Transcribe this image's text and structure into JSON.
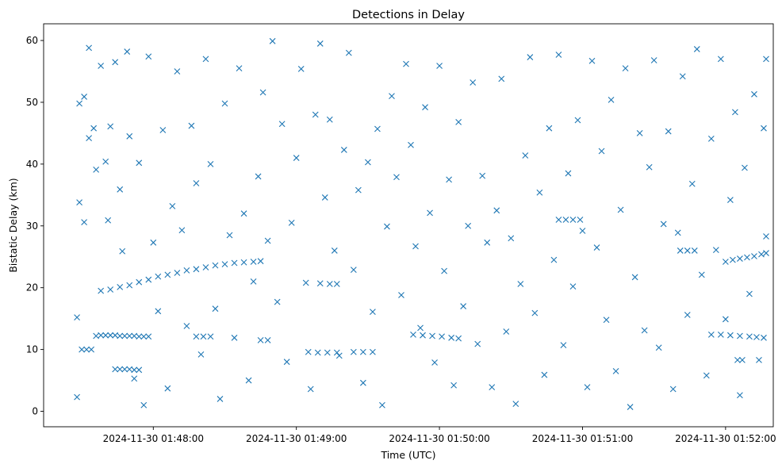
{
  "chart_data": {
    "type": "scatter",
    "title": "Detections in Delay",
    "xlabel": "Time (UTC)",
    "ylabel": "Bistatic Delay (km)",
    "x_ticks": [
      "2024-11-30 01:48:00",
      "2024-11-30 01:49:00",
      "2024-11-30 01:50:00",
      "2024-11-30 01:51:00",
      "2024-11-30 01:52:00"
    ],
    "y_ticks": [
      0,
      10,
      20,
      30,
      40,
      50,
      60
    ],
    "xlim": [
      "2024-11-30 01:47:14",
      "2024-11-30 01:52:20"
    ],
    "ylim": [
      -2.5,
      62.7
    ],
    "marker": "x",
    "grid": false,
    "color": "#1f77b4",
    "series": [
      {
        "points": [
          [
            "2024-11-30 01:47:28",
            15.2
          ],
          [
            "2024-11-30 01:47:28",
            2.3
          ],
          [
            "2024-11-30 01:47:29",
            49.8
          ],
          [
            "2024-11-30 01:47:29",
            33.8
          ],
          [
            "2024-11-30 01:47:31",
            50.9
          ],
          [
            "2024-11-30 01:47:31",
            30.6
          ],
          [
            "2024-11-30 01:47:33",
            58.8
          ],
          [
            "2024-11-30 01:47:33",
            44.2
          ],
          [
            "2024-11-30 01:47:35",
            45.8
          ],
          [
            "2024-11-30 01:47:36",
            39.1
          ],
          [
            "2024-11-30 01:47:38",
            55.9
          ],
          [
            "2024-11-30 01:47:40",
            40.4
          ],
          [
            "2024-11-30 01:47:41",
            30.9
          ],
          [
            "2024-11-30 01:47:42",
            46.1
          ],
          [
            "2024-11-30 01:47:44",
            56.5
          ],
          [
            "2024-11-30 01:47:46",
            35.9
          ],
          [
            "2024-11-30 01:47:47",
            25.9
          ],
          [
            "2024-11-30 01:47:49",
            58.2
          ],
          [
            "2024-11-30 01:47:50",
            44.5
          ],
          [
            "2024-11-30 01:47:52",
            5.3
          ],
          [
            "2024-11-30 01:47:54",
            40.2
          ],
          [
            "2024-11-30 01:47:56",
            1.0
          ],
          [
            "2024-11-30 01:47:58",
            57.4
          ],
          [
            "2024-11-30 01:48:00",
            27.3
          ],
          [
            "2024-11-30 01:48:02",
            16.2
          ],
          [
            "2024-11-30 01:48:04",
            45.5
          ],
          [
            "2024-11-30 01:48:06",
            3.7
          ],
          [
            "2024-11-30 01:48:08",
            33.2
          ],
          [
            "2024-11-30 01:48:10",
            55.0
          ],
          [
            "2024-11-30 01:48:12",
            29.3
          ],
          [
            "2024-11-30 01:48:14",
            13.8
          ],
          [
            "2024-11-30 01:48:16",
            46.2
          ],
          [
            "2024-11-30 01:48:18",
            36.9
          ],
          [
            "2024-11-30 01:48:20",
            9.2
          ],
          [
            "2024-11-30 01:48:22",
            57.0
          ],
          [
            "2024-11-30 01:48:24",
            40.0
          ],
          [
            "2024-11-30 01:48:26",
            16.6
          ],
          [
            "2024-11-30 01:48:28",
            2.0
          ],
          [
            "2024-11-30 01:48:30",
            49.8
          ],
          [
            "2024-11-30 01:48:32",
            28.5
          ],
          [
            "2024-11-30 01:48:34",
            11.9
          ],
          [
            "2024-11-30 01:48:36",
            55.5
          ],
          [
            "2024-11-30 01:48:38",
            32.0
          ],
          [
            "2024-11-30 01:48:40",
            5.0
          ],
          [
            "2024-11-30 01:48:42",
            21.0
          ],
          [
            "2024-11-30 01:48:44",
            38.0
          ],
          [
            "2024-11-30 01:48:46",
            51.6
          ],
          [
            "2024-11-30 01:48:48",
            27.6
          ],
          [
            "2024-11-30 01:48:50",
            59.9
          ],
          [
            "2024-11-30 01:48:52",
            17.7
          ],
          [
            "2024-11-30 01:48:54",
            46.5
          ],
          [
            "2024-11-30 01:48:56",
            8.0
          ],
          [
            "2024-11-30 01:48:58",
            30.5
          ],
          [
            "2024-11-30 01:49:00",
            41.0
          ],
          [
            "2024-11-30 01:49:02",
            55.4
          ],
          [
            "2024-11-30 01:49:04",
            20.8
          ],
          [
            "2024-11-30 01:49:06",
            3.6
          ],
          [
            "2024-11-30 01:49:08",
            48.0
          ],
          [
            "2024-11-30 01:49:10",
            59.5
          ],
          [
            "2024-11-30 01:49:12",
            34.6
          ],
          [
            "2024-11-30 01:49:14",
            47.2
          ],
          [
            "2024-11-30 01:49:16",
            26.0
          ],
          [
            "2024-11-30 01:49:18",
            9.0
          ],
          [
            "2024-11-30 01:49:20",
            42.3
          ],
          [
            "2024-11-30 01:49:22",
            58.0
          ],
          [
            "2024-11-30 01:49:24",
            22.9
          ],
          [
            "2024-11-30 01:49:26",
            35.8
          ],
          [
            "2024-11-30 01:49:28",
            4.6
          ],
          [
            "2024-11-30 01:49:30",
            40.3
          ],
          [
            "2024-11-30 01:49:32",
            16.1
          ],
          [
            "2024-11-30 01:49:34",
            45.7
          ],
          [
            "2024-11-30 01:49:36",
            1.0
          ],
          [
            "2024-11-30 01:49:38",
            29.9
          ],
          [
            "2024-11-30 01:49:40",
            51.0
          ],
          [
            "2024-11-30 01:49:42",
            37.9
          ],
          [
            "2024-11-30 01:49:44",
            18.8
          ],
          [
            "2024-11-30 01:49:46",
            56.2
          ],
          [
            "2024-11-30 01:49:48",
            43.1
          ],
          [
            "2024-11-30 01:49:50",
            26.7
          ],
          [
            "2024-11-30 01:49:52",
            13.5
          ],
          [
            "2024-11-30 01:49:54",
            49.2
          ],
          [
            "2024-11-30 01:49:56",
            32.1
          ],
          [
            "2024-11-30 01:49:58",
            7.9
          ],
          [
            "2024-11-30 01:50:00",
            55.9
          ],
          [
            "2024-11-30 01:50:02",
            22.7
          ],
          [
            "2024-11-30 01:50:04",
            37.5
          ],
          [
            "2024-11-30 01:50:06",
            4.2
          ],
          [
            "2024-11-30 01:50:08",
            46.8
          ],
          [
            "2024-11-30 01:50:10",
            17.0
          ],
          [
            "2024-11-30 01:50:12",
            30.0
          ],
          [
            "2024-11-30 01:50:14",
            53.2
          ],
          [
            "2024-11-30 01:50:16",
            10.9
          ],
          [
            "2024-11-30 01:50:18",
            38.1
          ],
          [
            "2024-11-30 01:50:20",
            27.3
          ],
          [
            "2024-11-30 01:50:22",
            3.9
          ],
          [
            "2024-11-30 01:50:24",
            32.5
          ],
          [
            "2024-11-30 01:50:26",
            53.8
          ],
          [
            "2024-11-30 01:50:28",
            12.9
          ],
          [
            "2024-11-30 01:50:30",
            28.0
          ],
          [
            "2024-11-30 01:50:32",
            1.2
          ],
          [
            "2024-11-30 01:50:34",
            20.6
          ],
          [
            "2024-11-30 01:50:36",
            41.4
          ],
          [
            "2024-11-30 01:50:38",
            57.3
          ],
          [
            "2024-11-30 01:50:40",
            15.9
          ],
          [
            "2024-11-30 01:50:42",
            35.4
          ],
          [
            "2024-11-30 01:50:44",
            5.9
          ],
          [
            "2024-11-30 01:50:46",
            45.8
          ],
          [
            "2024-11-30 01:50:48",
            24.5
          ],
          [
            "2024-11-30 01:50:50",
            57.7
          ],
          [
            "2024-11-30 01:50:52",
            10.7
          ],
          [
            "2024-11-30 01:50:54",
            38.5
          ],
          [
            "2024-11-30 01:50:56",
            20.2
          ],
          [
            "2024-11-30 01:50:58",
            47.1
          ],
          [
            "2024-11-30 01:51:00",
            29.2
          ],
          [
            "2024-11-30 01:51:02",
            3.9
          ],
          [
            "2024-11-30 01:51:04",
            56.7
          ],
          [
            "2024-11-30 01:51:06",
            26.5
          ],
          [
            "2024-11-30 01:51:08",
            42.1
          ],
          [
            "2024-11-30 01:51:10",
            14.8
          ],
          [
            "2024-11-30 01:51:12",
            50.4
          ],
          [
            "2024-11-30 01:51:14",
            6.5
          ],
          [
            "2024-11-30 01:51:16",
            32.6
          ],
          [
            "2024-11-30 01:51:18",
            55.5
          ],
          [
            "2024-11-30 01:51:20",
            0.7
          ],
          [
            "2024-11-30 01:51:22",
            21.7
          ],
          [
            "2024-11-30 01:51:24",
            45.0
          ],
          [
            "2024-11-30 01:51:26",
            13.1
          ],
          [
            "2024-11-30 01:51:28",
            39.5
          ],
          [
            "2024-11-30 01:51:30",
            56.8
          ],
          [
            "2024-11-30 01:51:32",
            10.3
          ],
          [
            "2024-11-30 01:51:34",
            30.3
          ],
          [
            "2024-11-30 01:51:36",
            45.3
          ],
          [
            "2024-11-30 01:51:38",
            3.6
          ],
          [
            "2024-11-30 01:51:40",
            28.9
          ],
          [
            "2024-11-30 01:51:42",
            54.2
          ],
          [
            "2024-11-30 01:51:44",
            15.6
          ],
          [
            "2024-11-30 01:51:46",
            36.8
          ],
          [
            "2024-11-30 01:51:48",
            58.6
          ],
          [
            "2024-11-30 01:51:50",
            22.1
          ],
          [
            "2024-11-30 01:51:52",
            5.8
          ],
          [
            "2024-11-30 01:51:54",
            44.1
          ],
          [
            "2024-11-30 01:51:56",
            26.1
          ],
          [
            "2024-11-30 01:51:58",
            57.0
          ],
          [
            "2024-11-30 01:52:00",
            14.9
          ],
          [
            "2024-11-30 01:52:02",
            34.2
          ],
          [
            "2024-11-30 01:52:04",
            48.4
          ],
          [
            "2024-11-30 01:52:06",
            2.6
          ],
          [
            "2024-11-30 01:52:08",
            39.4
          ],
          [
            "2024-11-30 01:52:10",
            19.0
          ],
          [
            "2024-11-30 01:52:12",
            51.3
          ],
          [
            "2024-11-30 01:52:14",
            8.3
          ],
          [
            "2024-11-30 01:52:16",
            45.8
          ],
          [
            "2024-11-30 01:52:17",
            28.3
          ],
          [
            "2024-11-30 01:52:17",
            57.0
          ],
          [
            "2024-11-30 01:47:30",
            10.0
          ],
          [
            "2024-11-30 01:47:32",
            10.0
          ],
          [
            "2024-11-30 01:47:34",
            10.0
          ],
          [
            "2024-11-30 01:47:36",
            12.2
          ],
          [
            "2024-11-30 01:47:38",
            12.3
          ],
          [
            "2024-11-30 01:47:40",
            12.3
          ],
          [
            "2024-11-30 01:47:42",
            12.3
          ],
          [
            "2024-11-30 01:47:44",
            12.3
          ],
          [
            "2024-11-30 01:47:46",
            12.2
          ],
          [
            "2024-11-30 01:47:48",
            12.2
          ],
          [
            "2024-11-30 01:47:50",
            12.2
          ],
          [
            "2024-11-30 01:47:52",
            12.2
          ],
          [
            "2024-11-30 01:47:54",
            12.1
          ],
          [
            "2024-11-30 01:47:56",
            12.1
          ],
          [
            "2024-11-30 01:47:58",
            12.1
          ],
          [
            "2024-11-30 01:47:44",
            6.8
          ],
          [
            "2024-11-30 01:47:46",
            6.8
          ],
          [
            "2024-11-30 01:47:48",
            6.8
          ],
          [
            "2024-11-30 01:47:50",
            6.8
          ],
          [
            "2024-11-30 01:47:52",
            6.7
          ],
          [
            "2024-11-30 01:47:54",
            6.7
          ],
          [
            "2024-11-30 01:47:38",
            19.5
          ],
          [
            "2024-11-30 01:47:42",
            19.7
          ],
          [
            "2024-11-30 01:47:46",
            20.1
          ],
          [
            "2024-11-30 01:47:50",
            20.4
          ],
          [
            "2024-11-30 01:47:54",
            20.9
          ],
          [
            "2024-11-30 01:47:58",
            21.3
          ],
          [
            "2024-11-30 01:48:02",
            21.8
          ],
          [
            "2024-11-30 01:48:06",
            22.1
          ],
          [
            "2024-11-30 01:48:10",
            22.4
          ],
          [
            "2024-11-30 01:48:14",
            22.8
          ],
          [
            "2024-11-30 01:48:18",
            23.0
          ],
          [
            "2024-11-30 01:48:22",
            23.3
          ],
          [
            "2024-11-30 01:48:26",
            23.6
          ],
          [
            "2024-11-30 01:48:30",
            23.8
          ],
          [
            "2024-11-30 01:48:34",
            24.0
          ],
          [
            "2024-11-30 01:48:38",
            24.1
          ],
          [
            "2024-11-30 01:48:42",
            24.2
          ],
          [
            "2024-11-30 01:48:45",
            24.3
          ],
          [
            "2024-11-30 01:48:18",
            12.1
          ],
          [
            "2024-11-30 01:48:21",
            12.1
          ],
          [
            "2024-11-30 01:48:24",
            12.1
          ],
          [
            "2024-11-30 01:48:45",
            11.5
          ],
          [
            "2024-11-30 01:48:48",
            11.5
          ],
          [
            "2024-11-30 01:49:05",
            9.6
          ],
          [
            "2024-11-30 01:49:09",
            9.5
          ],
          [
            "2024-11-30 01:49:13",
            9.5
          ],
          [
            "2024-11-30 01:49:17",
            9.5
          ],
          [
            "2024-11-30 01:49:24",
            9.6
          ],
          [
            "2024-11-30 01:49:28",
            9.6
          ],
          [
            "2024-11-30 01:49:32",
            9.6
          ],
          [
            "2024-11-30 01:49:10",
            20.7
          ],
          [
            "2024-11-30 01:49:14",
            20.6
          ],
          [
            "2024-11-30 01:49:17",
            20.6
          ],
          [
            "2024-11-30 01:49:49",
            12.4
          ],
          [
            "2024-11-30 01:49:53",
            12.3
          ],
          [
            "2024-11-30 01:49:57",
            12.2
          ],
          [
            "2024-11-30 01:50:01",
            12.1
          ],
          [
            "2024-11-30 01:50:05",
            11.9
          ],
          [
            "2024-11-30 01:50:08",
            11.8
          ],
          [
            "2024-11-30 01:50:50",
            31.0
          ],
          [
            "2024-11-30 01:50:53",
            31.0
          ],
          [
            "2024-11-30 01:50:56",
            31.0
          ],
          [
            "2024-11-30 01:50:59",
            31.0
          ],
          [
            "2024-11-30 01:51:41",
            26.0
          ],
          [
            "2024-11-30 01:51:44",
            26.0
          ],
          [
            "2024-11-30 01:51:47",
            26.0
          ],
          [
            "2024-11-30 01:51:54",
            12.4
          ],
          [
            "2024-11-30 01:51:58",
            12.4
          ],
          [
            "2024-11-30 01:52:02",
            12.3
          ],
          [
            "2024-11-30 01:52:06",
            12.2
          ],
          [
            "2024-11-30 01:52:10",
            12.1
          ],
          [
            "2024-11-30 01:52:13",
            12.0
          ],
          [
            "2024-11-30 01:52:16",
            11.9
          ],
          [
            "2024-11-30 01:52:00",
            24.2
          ],
          [
            "2024-11-30 01:52:03",
            24.5
          ],
          [
            "2024-11-30 01:52:06",
            24.7
          ],
          [
            "2024-11-30 01:52:09",
            24.9
          ],
          [
            "2024-11-30 01:52:12",
            25.1
          ],
          [
            "2024-11-30 01:52:15",
            25.4
          ],
          [
            "2024-11-30 01:52:17",
            25.6
          ],
          [
            "2024-11-30 01:52:05",
            8.3
          ],
          [
            "2024-11-30 01:52:07",
            8.3
          ]
        ]
      }
    ]
  }
}
